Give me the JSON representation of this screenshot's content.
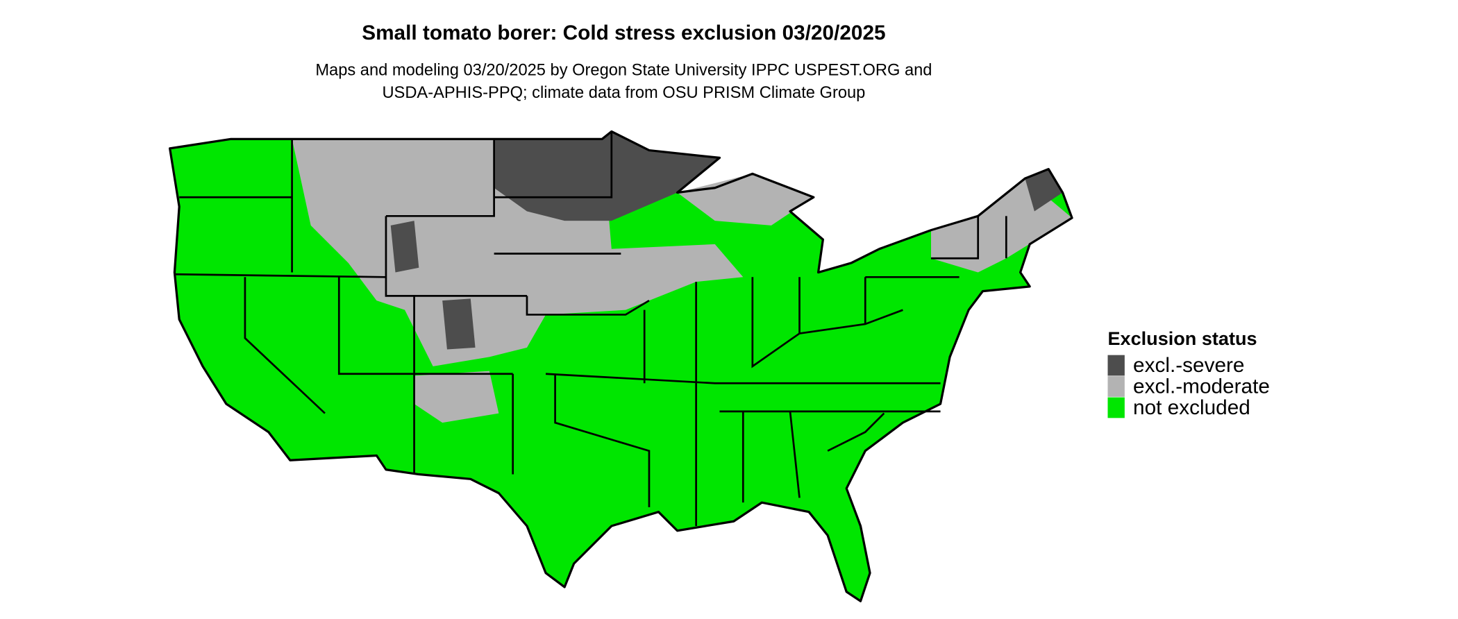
{
  "title": "Small tomato borer: Cold stress exclusion 03/20/2025",
  "subtitle": [
    "Maps and modeling 03/20/2025 by Oregon State University IPPC USPEST.ORG and",
    "USDA-APHIS-PPQ; climate data from OSU PRISM Climate Group"
  ],
  "legend": {
    "title": "Exclusion status",
    "items": [
      {
        "label": "excl.-severe",
        "color": "#4d4d4d"
      },
      {
        "label": "excl.-moderate",
        "color": "#b3b3b3"
      },
      {
        "label": "not excluded",
        "color": "#00e600"
      }
    ]
  }
}
